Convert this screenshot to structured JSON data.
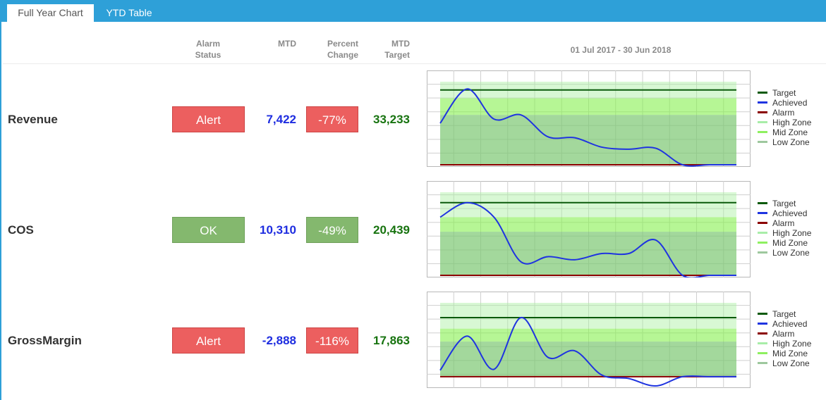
{
  "tabs": [
    {
      "label": "Full Year Chart",
      "active": true
    },
    {
      "label": "YTD Table",
      "active": false
    }
  ],
  "headers": {
    "alarm": [
      "Alarm",
      "Status"
    ],
    "mtd": "MTD",
    "percent": [
      "Percent",
      "Change"
    ],
    "target": [
      "MTD",
      "Target"
    ],
    "date_range": "01 Jul 2017 - 30 Jun 2018"
  },
  "colors": {
    "alert": "#ec5f5f",
    "ok": "#84b86e",
    "mtd_text": "#1e2de0",
    "target_text": "#17730f",
    "tab_bar": "#2ea0d8"
  },
  "legend": [
    {
      "label": "Target",
      "color": "#0b5a0b"
    },
    {
      "label": "Achieved",
      "color": "#1f34e0"
    },
    {
      "label": "Alarm",
      "color": "#8b0000"
    },
    {
      "label": "High Zone",
      "color": "#a8eda8"
    },
    {
      "label": "Mid Zone",
      "color": "#8ef060"
    },
    {
      "label": "Low Zone",
      "color": "#9ec89e"
    }
  ],
  "rows": [
    {
      "label": "Revenue",
      "status": "Alert",
      "status_kind": "alert",
      "mtd": "7,422",
      "percent": "-77%",
      "percent_kind": "alert",
      "target": "33,233"
    },
    {
      "label": "COS",
      "status": "OK",
      "status_kind": "ok",
      "mtd": "10,310",
      "percent": "-49%",
      "percent_kind": "ok",
      "target": "20,439"
    },
    {
      "label": "GrossMargin",
      "status": "Alert",
      "status_kind": "alert",
      "mtd": "-2,888",
      "percent": "-116%",
      "percent_kind": "alert",
      "target": "17,863"
    }
  ],
  "chart_data": [
    {
      "type": "line",
      "name": "Revenue",
      "y_range": [
        0,
        40
      ],
      "zones": {
        "low": [
          0,
          24
        ],
        "mid": [
          24,
          32
        ],
        "high": [
          32,
          40
        ]
      },
      "target": 36,
      "alarm": 0,
      "achieved": [
        20,
        36.5,
        22,
        24,
        13.5,
        13,
        8.5,
        7.5,
        8,
        0,
        0,
        0
      ]
    },
    {
      "type": "line",
      "name": "COS",
      "y_range": [
        0,
        40
      ],
      "zones": {
        "low": [
          0,
          21
        ],
        "mid": [
          21,
          28
        ],
        "high": [
          28,
          40
        ]
      },
      "target": 35,
      "alarm": 0,
      "achieved": [
        28,
        35,
        28,
        6.5,
        9,
        7.5,
        10.5,
        10.5,
        17,
        0,
        0,
        0
      ]
    },
    {
      "type": "line",
      "name": "GrossMargin",
      "y_range": [
        -5,
        40
      ],
      "zones": {
        "low": [
          0,
          19
        ],
        "mid": [
          19,
          26
        ],
        "high": [
          26,
          40
        ]
      },
      "target": 32,
      "alarm": 0,
      "achieved": [
        3.5,
        22,
        4,
        32,
        10.5,
        14,
        0.9,
        -1,
        -5,
        0,
        0,
        0
      ]
    }
  ]
}
